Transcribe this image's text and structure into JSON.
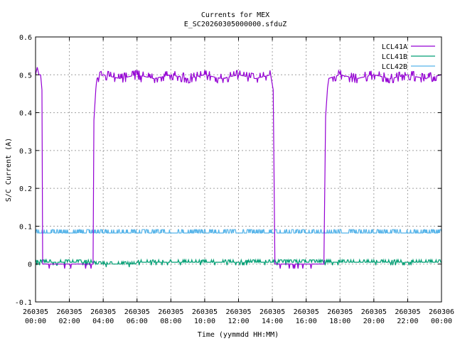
{
  "chart_data": {
    "type": "line",
    "title": "Currents for MEX",
    "subtitle": "E_SC20260305000000.sfduZ",
    "xlabel": "Time (yymmdd HH:MM)",
    "ylabel": "S/C Current (A)",
    "xlim_hours": [
      0,
      24
    ],
    "ylim": [
      -0.1,
      0.6
    ],
    "yticks": [
      -0.1,
      0,
      0.1,
      0.2,
      0.3,
      0.4,
      0.5,
      0.6
    ],
    "ytick_labels": [
      "-0.1",
      "0",
      "0.1",
      "0.2",
      "0.3",
      "0.4",
      "0.5",
      "0.6"
    ],
    "xtick_hours": [
      0,
      2,
      4,
      6,
      8,
      10,
      12,
      14,
      16,
      18,
      20,
      22,
      24
    ],
    "xtick_labels": [
      [
        "260305",
        "00:00"
      ],
      [
        "260305",
        "02:00"
      ],
      [
        "260305",
        "04:00"
      ],
      [
        "260305",
        "06:00"
      ],
      [
        "260305",
        "08:00"
      ],
      [
        "260305",
        "10:00"
      ],
      [
        "260305",
        "12:00"
      ],
      [
        "260305",
        "14:00"
      ],
      [
        "260305",
        "16:00"
      ],
      [
        "260305",
        "18:00"
      ],
      [
        "260305",
        "20:00"
      ],
      [
        "260305",
        "22:00"
      ],
      [
        "260306",
        "00:00"
      ]
    ],
    "grid": true,
    "legend_position": "top-right",
    "series": [
      {
        "name": "LCL41A",
        "color": "#9400d3",
        "x_hours": [
          0.0,
          0.1,
          0.2,
          0.3,
          0.38,
          0.42,
          0.5,
          1.0,
          2.0,
          3.0,
          3.4,
          3.45,
          3.6,
          4.0,
          5.0,
          6.0,
          7.0,
          8.0,
          9.0,
          10.0,
          11.0,
          12.0,
          13.0,
          13.9,
          14.05,
          14.15,
          14.3,
          15.0,
          16.0,
          16.9,
          17.05,
          17.15,
          17.3,
          18.0,
          19.0,
          20.0,
          21.0,
          22.0,
          23.0,
          24.0
        ],
        "y": [
          0.5,
          0.52,
          0.5,
          0.5,
          0.46,
          0.0,
          0.0,
          0.0,
          0.0,
          0.0,
          0.0,
          0.38,
          0.49,
          0.5,
          0.49,
          0.5,
          0.49,
          0.5,
          0.49,
          0.5,
          0.49,
          0.5,
          0.49,
          0.5,
          0.46,
          0.0,
          0.0,
          0.0,
          0.0,
          0.0,
          0.0,
          0.39,
          0.49,
          0.5,
          0.49,
          0.5,
          0.49,
          0.5,
          0.49,
          0.5
        ]
      },
      {
        "name": "LCL41B",
        "color": "#009e73",
        "x_hours": [
          0.0,
          3.4,
          3.5,
          5.9,
          6.0,
          24.0
        ],
        "y": [
          0.005,
          0.005,
          0.0,
          0.0,
          0.005,
          0.005
        ]
      },
      {
        "name": "LCL42B",
        "color": "#56b4e9",
        "x_hours": [
          0.0,
          24.0
        ],
        "y": [
          0.085,
          0.085
        ]
      }
    ]
  }
}
